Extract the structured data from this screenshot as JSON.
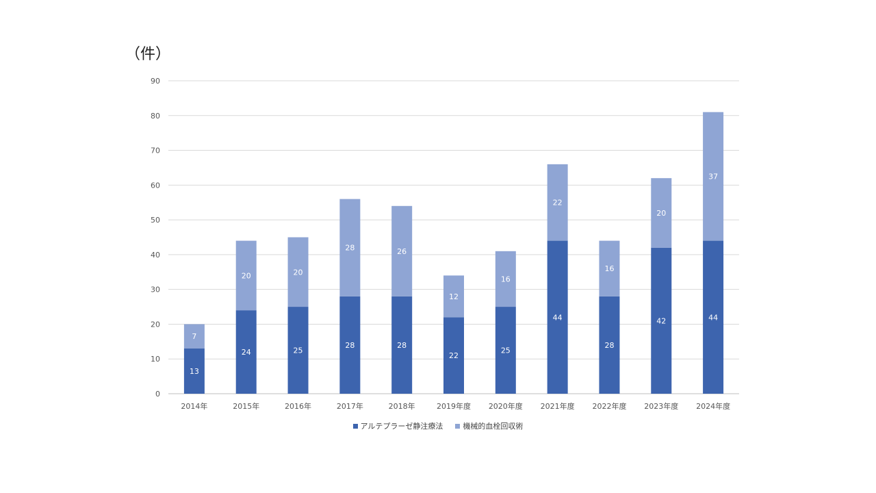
{
  "unit_label": "（件）",
  "chart_data": {
    "type": "bar",
    "stacked": true,
    "categories": [
      "2014年",
      "2015年",
      "2016年",
      "2017年",
      "2018年",
      "2019年度",
      "2020年度",
      "2021年度",
      "2022年度",
      "2023年度",
      "2024年度"
    ],
    "series": [
      {
        "name": "アルテプラーゼ静注療法",
        "color": "#3d64ae",
        "values": [
          13,
          24,
          25,
          28,
          28,
          22,
          25,
          44,
          28,
          42,
          44
        ]
      },
      {
        "name": "機械的血栓回収術",
        "color": "#8fa5d4",
        "values": [
          7,
          20,
          20,
          28,
          26,
          12,
          16,
          22,
          16,
          20,
          37
        ]
      }
    ],
    "ylim": [
      0,
      90
    ],
    "yticks": [
      0,
      10,
      20,
      30,
      40,
      50,
      60,
      70,
      80,
      90
    ],
    "grid": true,
    "legend_position": "bottom",
    "data_labels": true
  }
}
